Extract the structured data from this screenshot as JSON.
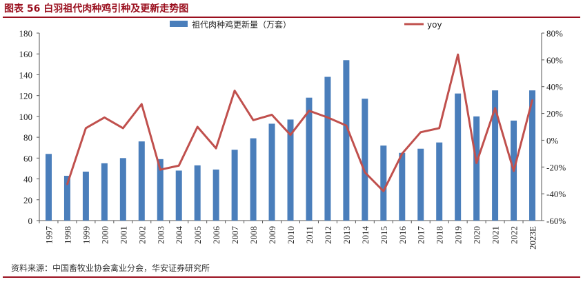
{
  "header": {
    "title": "图表 56  白羽祖代肉种鸡引种及更新走势图"
  },
  "footer": {
    "source": "资料来源：中国畜牧业协会禽业分会，华安证券研究所"
  },
  "colors": {
    "bar": "#4a7ebb",
    "line": "#c0504d",
    "accent": "#9a0f1e"
  },
  "chart_data": {
    "type": "bar",
    "title": "",
    "categories": [
      "1997",
      "1998",
      "1999",
      "2000",
      "2001",
      "2002",
      "2003",
      "2004",
      "2005",
      "2006",
      "2007",
      "2008",
      "2009",
      "2010",
      "2011",
      "2012",
      "2013",
      "2014",
      "2015",
      "2016",
      "2017",
      "2018",
      "2019",
      "2020",
      "2021",
      "2022",
      "2023E"
    ],
    "series": [
      {
        "name": "祖代肉种鸡更新量（万套）",
        "type": "bar",
        "axis": "left",
        "values": [
          64,
          43,
          47,
          55,
          60,
          76,
          59,
          48,
          53,
          49,
          68,
          79,
          93,
          97,
          118,
          138,
          154,
          117,
          72,
          65,
          69,
          75,
          122,
          100,
          125,
          96,
          125
        ]
      },
      {
        "name": "yoy",
        "type": "line",
        "axis": "right",
        "values": [
          null,
          -33,
          9,
          17,
          9,
          27,
          -22,
          -19,
          10,
          -6,
          37,
          15,
          19,
          4,
          22,
          17,
          11,
          -24,
          -38,
          -10,
          6,
          9,
          64,
          -17,
          24,
          -23,
          30
        ]
      }
    ],
    "y_left": {
      "ylim": [
        0,
        180
      ],
      "ticks": [
        0,
        20,
        40,
        60,
        80,
        100,
        120,
        140,
        160,
        180
      ]
    },
    "y_right": {
      "ylim": [
        -60,
        80
      ],
      "ticks": [
        "-60%",
        "-40%",
        "-20%",
        "0%",
        "20%",
        "40%",
        "60%",
        "80%"
      ]
    },
    "legend": {
      "position": "top",
      "bar_label": "祖代肉种鸡更新量（万套）",
      "line_label": "yoy"
    },
    "grid": false
  }
}
